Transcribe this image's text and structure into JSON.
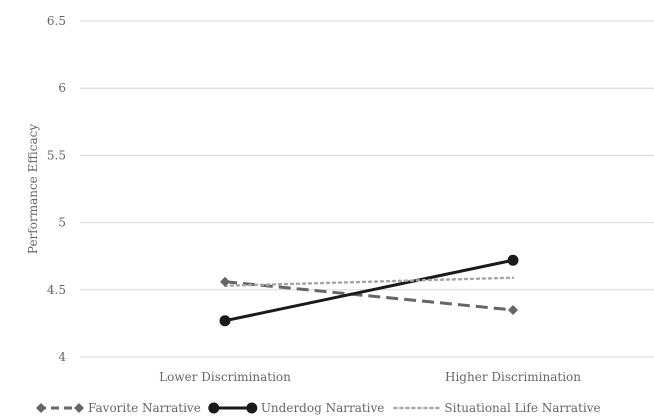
{
  "chart_data": {
    "type": "line",
    "title": "",
    "xlabel": "",
    "ylabel": "Performance Efficacy",
    "categories": [
      "Lower Discrimination",
      "Higher Discrimination"
    ],
    "ylim": [
      4,
      6.5
    ],
    "yticks": [
      4,
      4.5,
      5,
      5.5,
      6,
      6.5
    ],
    "ytick_labels": [
      "4",
      "4.5",
      "5",
      "5.5",
      "6",
      "6.5"
    ],
    "grid": true,
    "legend_position": "bottom",
    "series": [
      {
        "name": "Favorite Narrative",
        "values": [
          4.56,
          4.35
        ],
        "color": "#666666",
        "line_style": "dashed",
        "marker": "diamond"
      },
      {
        "name": "Underdog Narrative",
        "values": [
          4.27,
          4.72
        ],
        "color": "#1a1a1a",
        "line_style": "solid",
        "marker": "circle"
      },
      {
        "name": "Situational Life Narrative",
        "values": [
          4.53,
          4.59
        ],
        "color": "#a6a6a6",
        "line_style": "dotted",
        "marker": "none"
      }
    ]
  }
}
